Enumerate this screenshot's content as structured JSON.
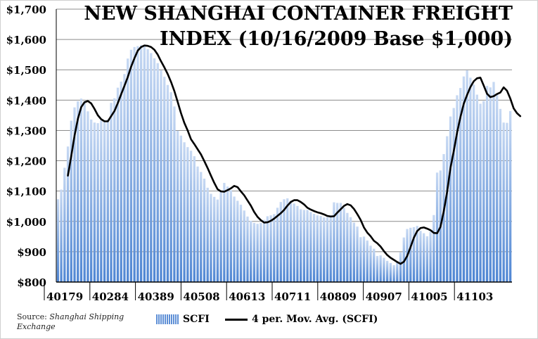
{
  "chart_data": {
    "type": "bar",
    "title": "NEW SHANGHAI CONTAINER FREIGHT INDEX (10/16/2009 Base $1,000)",
    "title_lines": [
      "NEW SHANGHAI CONTAINER FREIGHT",
      "INDEX (10/16/2009 Base $1,000)"
    ],
    "xlabel": "",
    "ylabel": "",
    "ylim": [
      800,
      1700
    ],
    "y_ticks": [
      "$800",
      "$900",
      "$1,000",
      "$1,100",
      "$1,200",
      "$1,300",
      "$1,400",
      "$1,500",
      "$1,600",
      "$1,700"
    ],
    "x_ticks": [
      "40179",
      "40284",
      "40389",
      "40508",
      "40613",
      "40711",
      "40809",
      "40907",
      "41005",
      "41103"
    ],
    "grid": true,
    "legend_position": "bottom",
    "series": [
      {
        "name": "SCFI",
        "kind": "bar",
        "color": "#6b99dc",
        "values": [
          1073,
          1105,
          1177,
          1247,
          1332,
          1376,
          1396,
          1405,
          1397,
          1363,
          1336,
          1326,
          1324,
          1333,
          1327,
          1335,
          1391,
          1406,
          1441,
          1461,
          1486,
          1537,
          1566,
          1575,
          1578,
          1581,
          1578,
          1568,
          1555,
          1538,
          1522,
          1498,
          1477,
          1450,
          1426,
          1379,
          1299,
          1283,
          1261,
          1245,
          1233,
          1215,
          1181,
          1163,
          1141,
          1111,
          1091,
          1081,
          1072,
          1102,
          1127,
          1115,
          1103,
          1082,
          1068,
          1055,
          1036,
          1016,
          1002,
          995,
          992,
          995,
          1005,
          1017,
          1020,
          1024,
          1045,
          1064,
          1073,
          1076,
          1068,
          1059,
          1051,
          1040,
          1038,
          1038,
          1031,
          1025,
          1020,
          1018,
          1013,
          1014,
          1021,
          1063,
          1061,
          1061,
          1045,
          1028,
          1014,
          996,
          983,
          948,
          950,
          937,
          920,
          910,
          886,
          888,
          880,
          870,
          863,
          856,
          868,
          898,
          947,
          975,
          979,
          981,
          985,
          969,
          961,
          951,
          966,
          1021,
          1161,
          1168,
          1222,
          1281,
          1346,
          1374,
          1416,
          1440,
          1478,
          1498,
          1474,
          1451,
          1418,
          1388,
          1397,
          1447,
          1442,
          1460,
          1420,
          1371,
          1326,
          1325,
          1364
        ]
      },
      {
        "name": "4 per. Mov. Avg. (SCFI)",
        "kind": "line",
        "color": "#000000",
        "start_index": 3,
        "values": [
          1151,
          1215,
          1283,
          1338,
          1377,
          1393,
          1397,
          1389,
          1371,
          1350,
          1337,
          1330,
          1330,
          1347,
          1364,
          1390,
          1419,
          1447,
          1476,
          1510,
          1538,
          1563,
          1575,
          1580,
          1579,
          1575,
          1566,
          1550,
          1528,
          1508,
          1486,
          1460,
          1430,
          1394,
          1357,
          1325,
          1300,
          1271,
          1255,
          1238,
          1221,
          1199,
          1176,
          1151,
          1127,
          1106,
          1099,
          1098,
          1103,
          1109,
          1117,
          1113,
          1099,
          1086,
          1069,
          1052,
          1031,
          1015,
          1004,
          996,
          997,
          1002,
          1009,
          1018,
          1027,
          1038,
          1052,
          1064,
          1070,
          1070,
          1064,
          1056,
          1045,
          1039,
          1034,
          1030,
          1027,
          1023,
          1018,
          1016,
          1017,
          1029,
          1040,
          1051,
          1057,
          1053,
          1041,
          1024,
          1005,
          980,
          963,
          951,
          936,
          928,
          917,
          902,
          889,
          880,
          873,
          866,
          860,
          867,
          886,
          915,
          946,
          968,
          978,
          980,
          976,
          971,
          962,
          961,
          982,
          1034,
          1097,
          1176,
          1232,
          1293,
          1344,
          1388,
          1417,
          1443,
          1462,
          1472,
          1474,
          1448,
          1421,
          1410,
          1413,
          1420,
          1425,
          1442,
          1431,
          1405,
          1373,
          1357,
          1347
        ]
      }
    ],
    "source_label": "Source:",
    "source_name_line1": "Shanghai Shipping",
    "source_name_line2": "Exchange"
  }
}
